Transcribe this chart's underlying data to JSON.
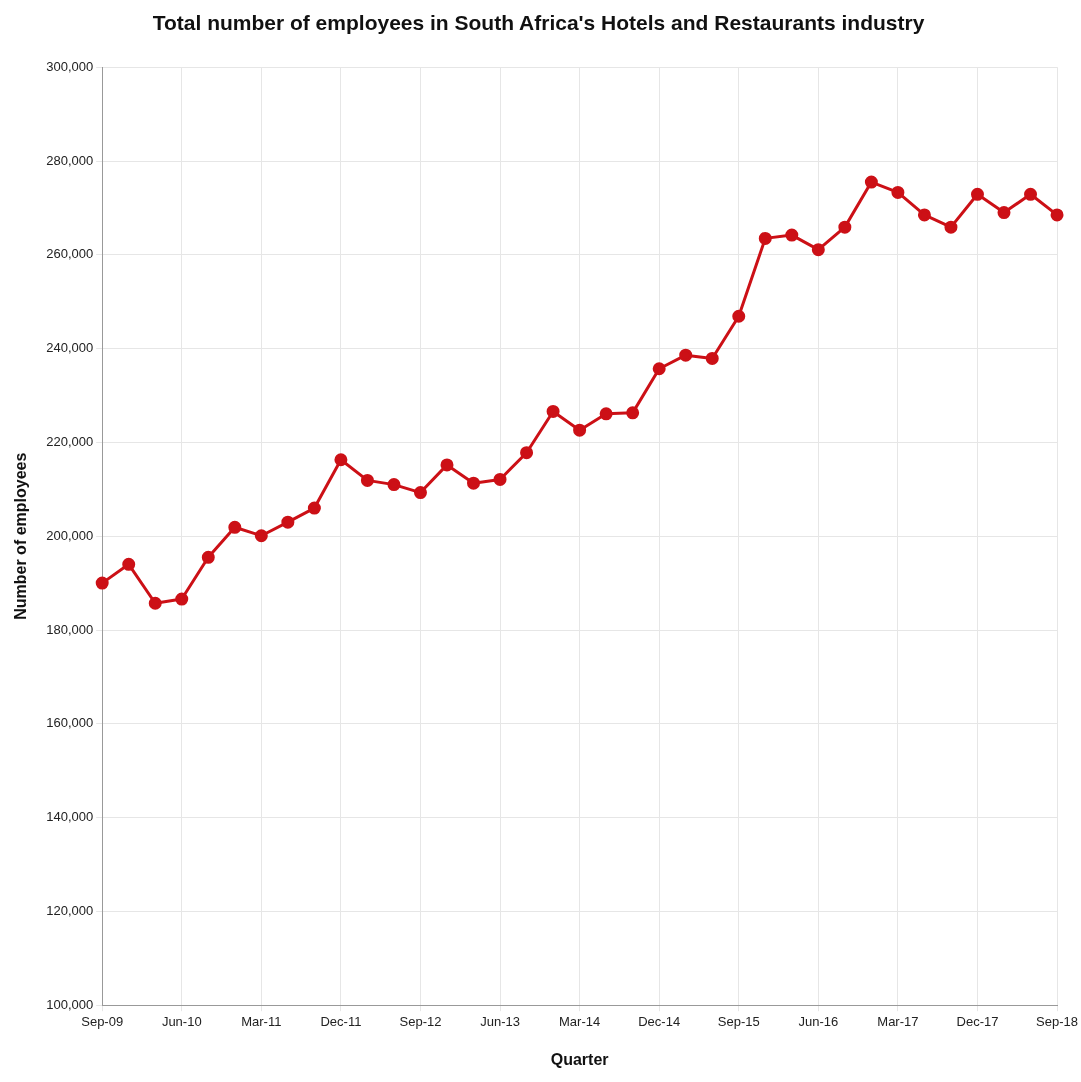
{
  "chart_data": {
    "type": "line",
    "title": "Total number of employees in South Africa's Hotels and Restaurants industry",
    "xlabel": "Quarter",
    "ylabel": "Number of employees",
    "categories": [
      "Sep-09",
      null,
      null,
      "Jun-10",
      null,
      null,
      "Mar-11",
      null,
      null,
      "Dec-11",
      null,
      null,
      "Sep-12",
      null,
      null,
      "Jun-13",
      null,
      null,
      "Mar-14",
      null,
      null,
      "Dec-14",
      null,
      null,
      "Sep-15",
      null,
      null,
      "Jun-16",
      null,
      null,
      "Mar-17",
      null,
      null,
      "Dec-17",
      null,
      null,
      "Sep-18"
    ],
    "series": [
      {
        "color": "#cc1016",
        "values": [
          190000,
          194000,
          185700,
          186600,
          195500,
          201900,
          200100,
          203000,
          206000,
          216300,
          211900,
          211000,
          209300,
          215200,
          211300,
          212100,
          217800,
          226600,
          222600,
          226100,
          226300,
          235700,
          238600,
          237900,
          246900,
          263500,
          264200,
          261100,
          265900,
          275500,
          273300,
          268500,
          265900,
          272900,
          269000,
          272900,
          268500
        ]
      }
    ],
    "ylim": [
      100000,
      300000
    ],
    "yticks": [
      {
        "value": 100000,
        "label": "100,000"
      },
      {
        "value": 120000,
        "label": "120,000"
      },
      {
        "value": 140000,
        "label": "140,000"
      },
      {
        "value": 160000,
        "label": "160,000"
      },
      {
        "value": 180000,
        "label": "180,000"
      },
      {
        "value": 200000,
        "label": "200,000"
      },
      {
        "value": 220000,
        "label": "220,000"
      },
      {
        "value": 240000,
        "label": "240,000"
      },
      {
        "value": 260000,
        "label": "260,000"
      },
      {
        "value": 280000,
        "label": "280,000"
      },
      {
        "value": 300000,
        "label": "300,000"
      }
    ],
    "grid": true,
    "marker": "circle",
    "line_style": "solid"
  }
}
